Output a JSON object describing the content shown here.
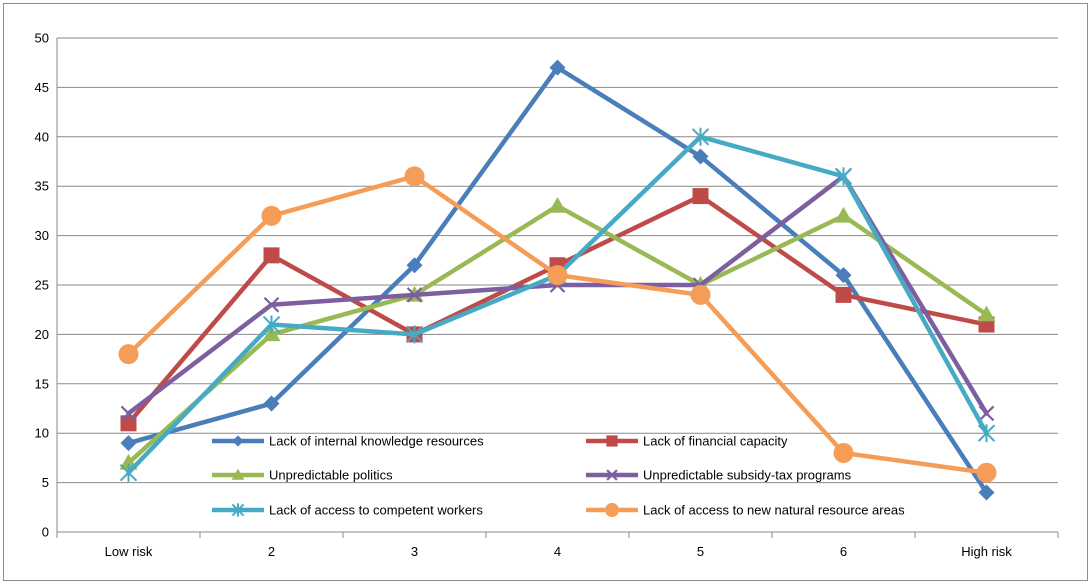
{
  "chart_data": {
    "type": "line",
    "title": "",
    "xlabel": "",
    "ylabel": "",
    "categories": [
      "Low risk",
      "2",
      "3",
      "4",
      "5",
      "6",
      "High risk"
    ],
    "ylim": [
      0,
      50
    ],
    "yticks": [
      0,
      5,
      10,
      15,
      20,
      25,
      30,
      35,
      40,
      45,
      50
    ],
    "grid": "horizontal",
    "legend_position": "inside-bottom-center",
    "series": [
      {
        "name": "Lack of internal knowledge resources",
        "color": "#4a7ebb",
        "marker": "diamond",
        "values": [
          9,
          13,
          27,
          47,
          38,
          26,
          4
        ]
      },
      {
        "name": "Lack of financial capacity",
        "color": "#be4b48",
        "marker": "square",
        "values": [
          11,
          28,
          20,
          27,
          34,
          24,
          21
        ]
      },
      {
        "name": "Unpredictable politics",
        "color": "#98b954",
        "marker": "triangle",
        "values": [
          7,
          20,
          24,
          33,
          25,
          32,
          22
        ]
      },
      {
        "name": "Unpredictable subsidy-tax programs",
        "color": "#7d5fa0",
        "marker": "x",
        "values": [
          12,
          23,
          24,
          25,
          25,
          36,
          12
        ]
      },
      {
        "name": "Lack of access to competent workers",
        "color": "#46aac5",
        "marker": "star",
        "values": [
          6,
          21,
          20,
          26,
          40,
          36,
          10
        ]
      },
      {
        "name": "Lack of access to new natural resource areas",
        "color": "#f59d56",
        "marker": "circle",
        "values": [
          18,
          32,
          36,
          26,
          24,
          8,
          6
        ]
      }
    ]
  }
}
